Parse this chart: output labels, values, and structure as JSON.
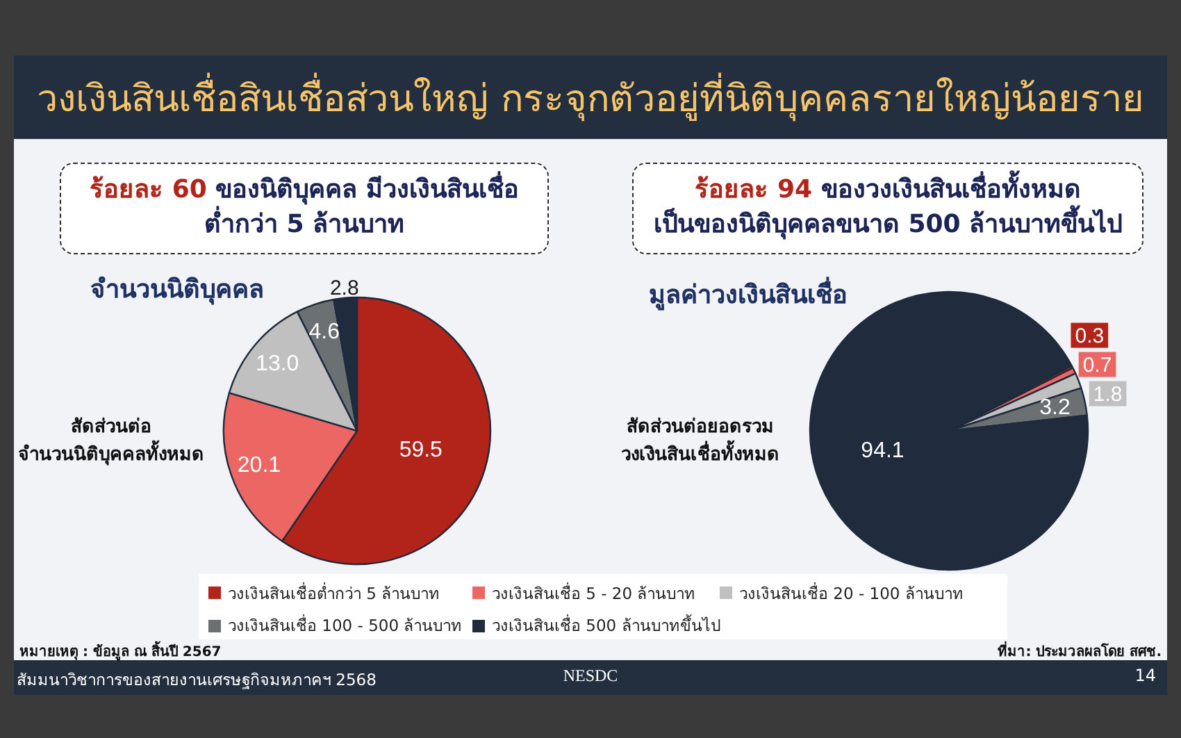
{
  "chart_data": [
    {
      "type": "other",
      "title": "วงเงินสินเชื่อสินเชื่อส่วนใหญ่ กระจุกตัวอยู่ที่นิติบุคคลรายใหญ่น้อยราย"
    },
    {
      "type": "pie",
      "title": "จำนวนนิติบุคคล",
      "subtitle": "ร้อยละ 60 ของนิติบุคคล มีวงเงินสินเชื่อ\nต่ำกว่า 5 ล้านบาท",
      "annotations": [
        "สัดส่วนต่อ\nจำนวนนิติบุคคลทั้งหมด"
      ],
      "categories": [
        "วงเงินสินเชื่อต่ำกว่า 5 ล้านบาท",
        "วงเงินสินเชื่อ 5 - 20 ล้านบาท",
        "วงเงินสินเชื่อ 20 - 100 ล้านบาท",
        "วงเงินสินเชื่อ 100 - 500 ล้านบาท",
        "วงเงินสินเชื่อ 500 ล้านบาทขึ้นไป"
      ],
      "values": [
        59.5,
        20.1,
        13.0,
        4.6,
        2.8
      ],
      "value_labels": [
        "59.5",
        "20.1",
        "13.0",
        "4.6",
        "2.8"
      ],
      "colors": [
        "#b22319",
        "#ec6763",
        "#c0c0c0",
        "#6b7173",
        "#202c3d"
      ],
      "legend": "bottom"
    },
    {
      "type": "pie",
      "title": "มูลค่าวงเงินสินเชื่อ",
      "subtitle": "ร้อยละ 94 ของวงเงินสินเชื่อทั้งหมด\nเป็นของนิติบุคคลขนาด 500 ล้านบาทขึ้นไป",
      "annotations": [
        "สัดส่วนต่อยอดรวม\nวงเงินสินเชื่อทั้งหมด"
      ],
      "categories": [
        null,
        null,
        null,
        null,
        null
      ],
      "values": [
        0.3,
        0.7,
        1.8,
        3.2,
        94.1
      ],
      "value_labels": [
        "0.3",
        "0.7",
        "1.8",
        "3.2",
        "94.1"
      ],
      "colors": [
        "#b22319",
        "#ec6763",
        "#c0c0c0",
        "#6b7173",
        "#202c3d"
      ]
    },
    {
      "type": "other",
      "annotations": [
        "หมายเหตุ : ข้อมูล ณ สิ้นปี 2567",
        "ที่มา: ประมวลผลโดย สศช.",
        "สัมมนาวิชาการของสายงานเศรษฐกิจมหภาคฯ 2568",
        "NESDC",
        "14"
      ]
    }
  ]
}
